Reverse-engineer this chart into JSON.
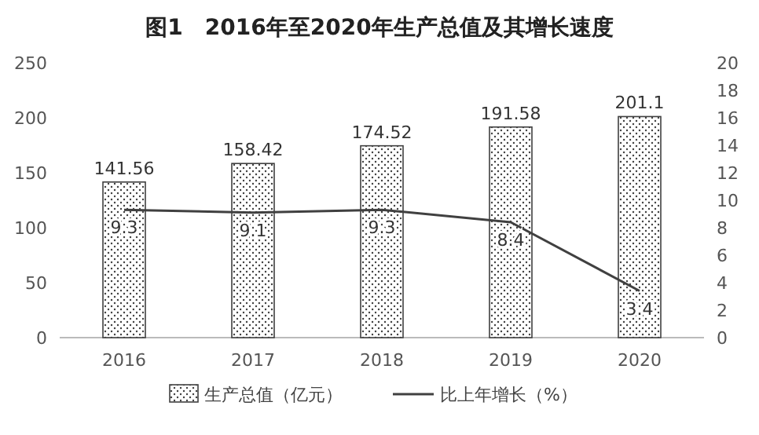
{
  "chart_data": {
    "type": "bar",
    "title": "图1　2016年至2020年生产总值及其增长速度",
    "categories": [
      "2016",
      "2017",
      "2018",
      "2019",
      "2020"
    ],
    "series": [
      {
        "name": "生产总值（亿元）",
        "color": "#404040",
        "values": [
          141.56,
          158.42,
          174.52,
          191.58,
          201.1
        ]
      },
      {
        "name": "比上年增长（%）",
        "type": "line",
        "axis": "y2",
        "color": "#404040",
        "values": [
          9.3,
          9.1,
          9.3,
          8.4,
          3.4
        ]
      }
    ],
    "ylim": [
      0,
      250
    ],
    "yticks": [
      0,
      50,
      100,
      150,
      200,
      250
    ],
    "y2lim": [
      0,
      20
    ],
    "y2ticks": [
      0,
      2,
      4,
      6,
      8,
      10,
      12,
      14,
      16,
      18,
      20
    ],
    "data_labels": true,
    "grid": false,
    "legend": "bottom",
    "line_style": "solid"
  }
}
